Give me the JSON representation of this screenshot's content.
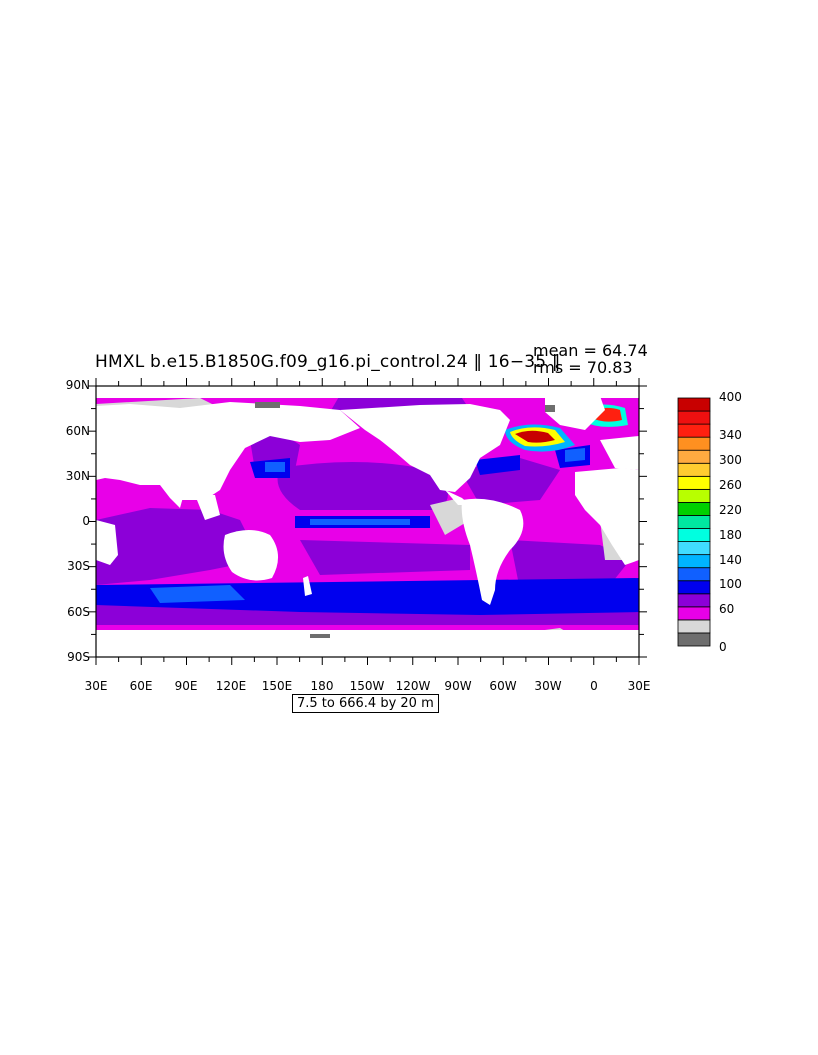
{
  "title": "HMXL b.e15.B1850G.f09_g16.pi_control.24 ‖ 16−35 ‖",
  "stats": {
    "mean": "mean = 64.74",
    "rms": "rms = 70.83"
  },
  "contour_info": "7.5 to 666.4 by 20 m",
  "axes": {
    "y_labels": [
      "90N",
      "60N",
      "30N",
      "0",
      "30S",
      "60S",
      "90S"
    ],
    "x_labels": [
      "30E",
      "60E",
      "90E",
      "120E",
      "150E",
      "180",
      "150W",
      "120W",
      "90W",
      "60W",
      "30W",
      "0",
      "30E"
    ]
  },
  "colorbar": {
    "labels": [
      "400",
      "340",
      "300",
      "260",
      "220",
      "180",
      "140",
      "100",
      "60",
      "0"
    ],
    "colors": [
      "#6e6e6e",
      "#d8d8d8",
      "#e800e8",
      "#8c00d8",
      "#0000ee",
      "#1060ff",
      "#00b4ff",
      "#40dcff",
      "#00ffe0",
      "#00e8a0",
      "#00d000",
      "#b8ff00",
      "#ffff00",
      "#ffcc30",
      "#ffaa40",
      "#ff9020",
      "#ff2010",
      "#ee1010",
      "#c80000"
    ]
  },
  "colors": {
    "magenta": "#e800e8",
    "violet": "#8c00d8",
    "blue": "#0000ee",
    "mid_blue": "#1060ff",
    "cyan": "#00b4ff",
    "land": "#ffffff",
    "sea_ice": "#d8d8d8",
    "dark_gray": "#6e6e6e"
  }
}
